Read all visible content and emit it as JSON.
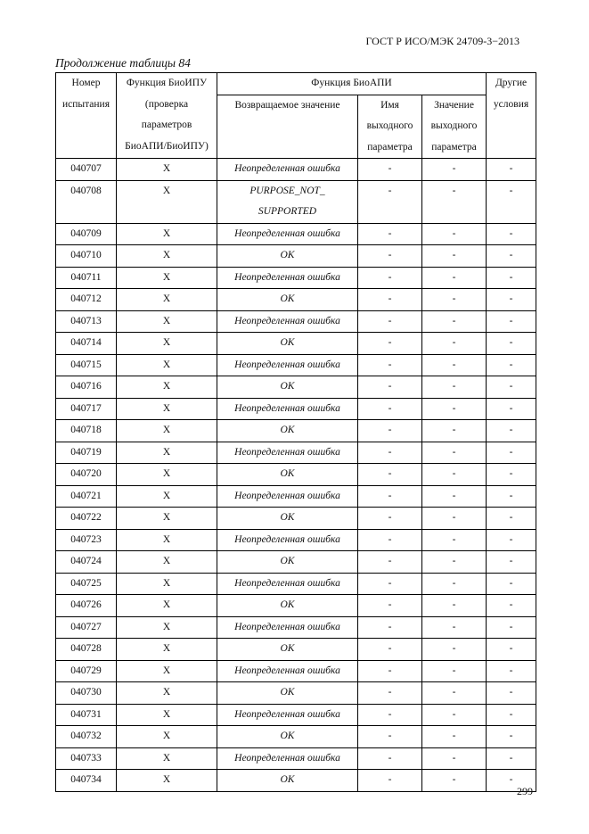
{
  "header": {
    "title": "ГОСТ Р ИСО/МЭК 24709-3−2013"
  },
  "caption": "Продолжение таблицы 84",
  "table": {
    "header": {
      "number": [
        "Номер",
        "испытания"
      ],
      "bioipu": [
        "Функция БиоИПУ",
        "(проверка",
        "параметров",
        "БиоАПИ/БиоИПУ)"
      ],
      "bioapi": "Функция БиоАПИ",
      "returned": "Возвращаемое значение",
      "name": [
        "Имя",
        "выходного",
        "параметра"
      ],
      "value": [
        "Значение",
        "выходного",
        "параметра"
      ],
      "other": [
        "Другие",
        "условия"
      ]
    },
    "rows": [
      [
        "040707",
        "X",
        "Неопределенная ошибка",
        "-",
        "-",
        "-"
      ],
      [
        "040708",
        "X",
        [
          "PURPOSE_NOT_",
          "SUPPORTED"
        ],
        "-",
        "-",
        "-"
      ],
      [
        "040709",
        "X",
        "Неопределенная ошибка",
        "-",
        "-",
        "-"
      ],
      [
        "040710",
        "X",
        "OK",
        "-",
        "-",
        "-"
      ],
      [
        "040711",
        "X",
        "Неопределенная ошибка",
        "-",
        "-",
        "-"
      ],
      [
        "040712",
        "X",
        "OK",
        "-",
        "-",
        "-"
      ],
      [
        "040713",
        "X",
        "Неопределенная ошибка",
        "-",
        "-",
        "-"
      ],
      [
        "040714",
        "X",
        "OK",
        "-",
        "-",
        "-"
      ],
      [
        "040715",
        "X",
        "Неопределенная ошибка",
        "-",
        "-",
        "-"
      ],
      [
        "040716",
        "X",
        "OK",
        "-",
        "-",
        "-"
      ],
      [
        "040717",
        "X",
        "Неопределенная ошибка",
        "-",
        "-",
        "-"
      ],
      [
        "040718",
        "X",
        "OK",
        "-",
        "-",
        "-"
      ],
      [
        "040719",
        "X",
        "Неопределенная ошибка",
        "-",
        "-",
        "-"
      ],
      [
        "040720",
        "X",
        "OK",
        "-",
        "-",
        "-"
      ],
      [
        "040721",
        "X",
        "Неопределенная ошибка",
        "-",
        "-",
        "-"
      ],
      [
        "040722",
        "X",
        "OK",
        "-",
        "-",
        "-"
      ],
      [
        "040723",
        "X",
        "Неопределенная ошибка",
        "-",
        "-",
        "-"
      ],
      [
        "040724",
        "X",
        "OK",
        "-",
        "-",
        "-"
      ],
      [
        "040725",
        "X",
        "Неопределенная ошибка",
        "-",
        "-",
        "-"
      ],
      [
        "040726",
        "X",
        "OK",
        "-",
        "-",
        "-"
      ],
      [
        "040727",
        "X",
        "Неопределенная ошибка",
        "-",
        "-",
        "-"
      ],
      [
        "040728",
        "X",
        "OK",
        "-",
        "-",
        "-"
      ],
      [
        "040729",
        "X",
        "Неопределенная ошибка",
        "-",
        "-",
        "-"
      ],
      [
        "040730",
        "X",
        "OK",
        "-",
        "-",
        "-"
      ],
      [
        "040731",
        "X",
        "Неопределенная ошибка",
        "-",
        "-",
        "-"
      ],
      [
        "040732",
        "X",
        "OK",
        "-",
        "-",
        "-"
      ],
      [
        "040733",
        "X",
        "Неопределенная ошибка",
        "-",
        "-",
        "-"
      ],
      [
        "040734",
        "X",
        "OK",
        "-",
        "-",
        "-"
      ]
    ]
  },
  "page_number": "299"
}
